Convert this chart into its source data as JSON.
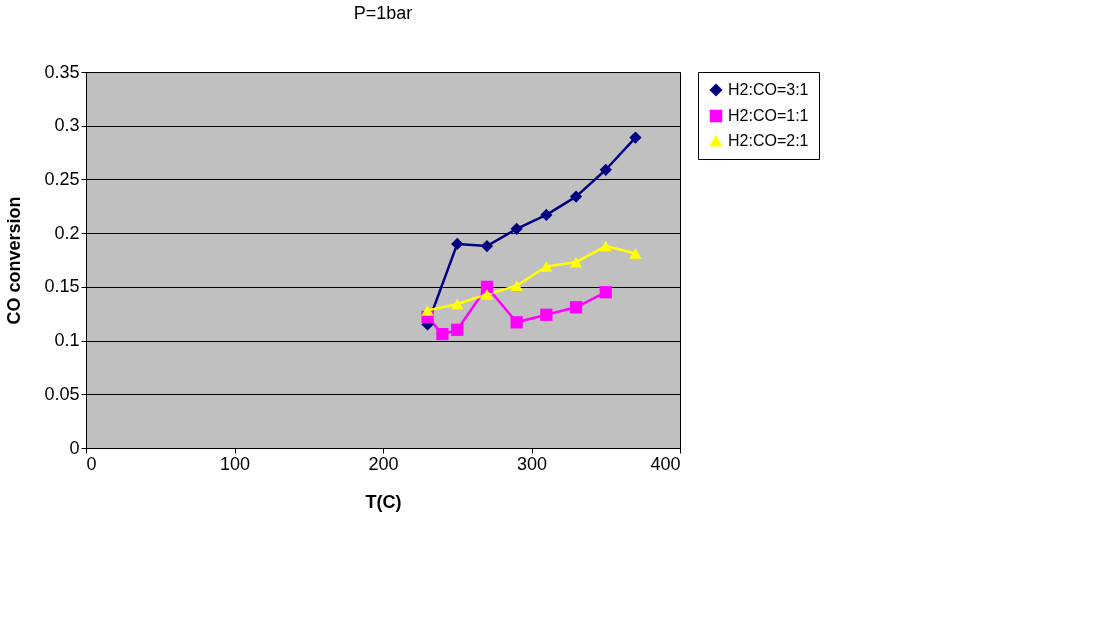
{
  "chart_data": {
    "type": "line",
    "title": "P=1bar",
    "xlabel": "T(C)",
    "ylabel": "CO conversion",
    "xlim": [
      0,
      400
    ],
    "xticks": [
      0,
      100,
      200,
      300,
      400
    ],
    "ylim": [
      0,
      0.35
    ],
    "yticks": [
      0,
      0.05,
      0.1,
      0.15,
      0.2,
      0.25,
      0.3,
      0.35
    ],
    "grid": "y",
    "legend": "right",
    "series": [
      {
        "name": "H2:CO=3:1",
        "color": "#000080",
        "marker": "diamond",
        "x": [
          230,
          250,
          270,
          290,
          310,
          330,
          350,
          370
        ],
        "values": [
          0.115,
          0.19,
          0.188,
          0.204,
          0.217,
          0.234,
          0.259,
          0.289
        ]
      },
      {
        "name": "H2:CO=1:1",
        "color": "#ff00ff",
        "marker": "square",
        "x": [
          230,
          240,
          250,
          270,
          290,
          310,
          330,
          350
        ],
        "values": [
          0.122,
          0.106,
          0.11,
          0.15,
          0.117,
          0.124,
          0.131,
          0.145
        ]
      },
      {
        "name": "H2:CO=2:1",
        "color": "#ffff00",
        "marker": "triangle",
        "x": [
          230,
          250,
          270,
          290,
          310,
          330,
          350,
          370
        ],
        "values": [
          0.128,
          0.134,
          0.143,
          0.151,
          0.169,
          0.173,
          0.188,
          0.181
        ]
      }
    ]
  }
}
